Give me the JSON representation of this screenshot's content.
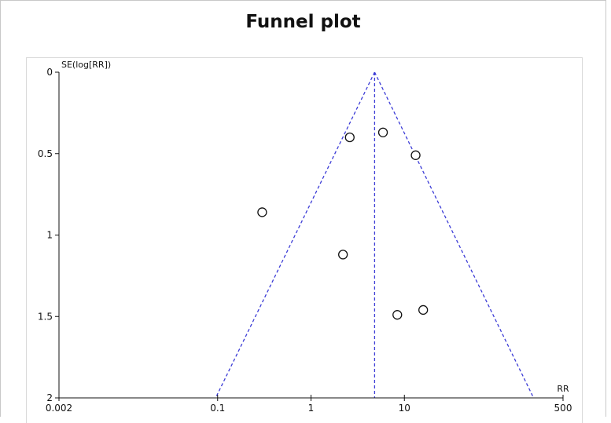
{
  "chart_data": {
    "type": "scatter",
    "title": "Funnel plot",
    "xlabel": "RR",
    "ylabel": "SE(log[RR])",
    "x_scale": "log",
    "xlim": [
      0.002,
      500
    ],
    "ylim": [
      0,
      2
    ],
    "y_inverted": true,
    "x_ticks": [
      {
        "value": 0.002,
        "label": "0.002"
      },
      {
        "value": 0.1,
        "label": "0.1"
      },
      {
        "value": 1,
        "label": "1"
      },
      {
        "value": 10,
        "label": "10"
      },
      {
        "value": 500,
        "label": "500"
      }
    ],
    "y_ticks": [
      {
        "value": 0,
        "label": "0"
      },
      {
        "value": 0.5,
        "label": "0.5"
      },
      {
        "value": 1,
        "label": "1"
      },
      {
        "value": 1.5,
        "label": "1.5"
      },
      {
        "value": 2,
        "label": "2"
      }
    ],
    "points": [
      {
        "x": 2.6,
        "y": 0.4
      },
      {
        "x": 5.9,
        "y": 0.37
      },
      {
        "x": 13.2,
        "y": 0.51
      },
      {
        "x": 0.3,
        "y": 0.86
      },
      {
        "x": 2.2,
        "y": 1.12
      },
      {
        "x": 8.4,
        "y": 1.49
      },
      {
        "x": 15.9,
        "y": 1.46
      }
    ],
    "pooled_estimate": 4.8,
    "funnel_lines": {
      "style": "dashed",
      "color": "#3b3bd6"
    },
    "grid": false,
    "colors": {
      "points_stroke": "#111111",
      "funnel": "#3b3bd6",
      "axis": "#111111"
    }
  }
}
